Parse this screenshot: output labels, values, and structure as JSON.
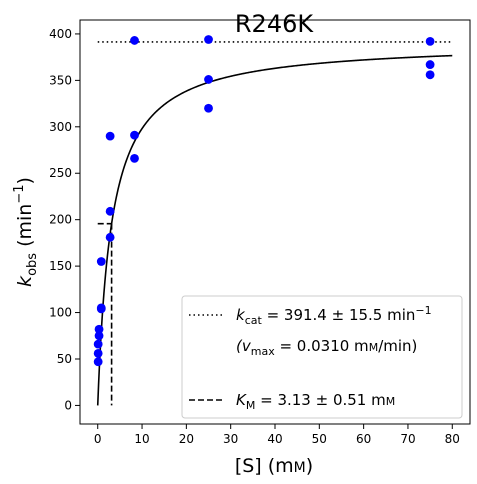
{
  "chart_data": {
    "type": "scatter",
    "title": "R246K",
    "xlabel": {
      "main": "[S] (m",
      "unit_sc": "M",
      "close": ")"
    },
    "ylabel": {
      "k": "k",
      "sub": "obs",
      "rest": " (min",
      "sup": "−1",
      "close": ")"
    },
    "xlim": [
      -4,
      84
    ],
    "ylim": [
      -20,
      415
    ],
    "x_ticks": [
      0,
      10,
      20,
      30,
      40,
      50,
      60,
      70,
      80
    ],
    "y_ticks": [
      0,
      50,
      100,
      150,
      200,
      250,
      300,
      350,
      400
    ],
    "grid": false,
    "legend_position": "bottom-right",
    "colors": {
      "points": "#0000ff",
      "fit": "#000000",
      "background": "#ffffff"
    },
    "series": [
      {
        "kind": "points",
        "x": [
          0.1,
          0.1,
          0.1,
          0.3,
          0.3,
          0.8,
          0.8,
          0.8,
          2.8,
          2.8,
          2.8,
          8.3,
          8.3,
          8.3,
          25,
          25,
          25,
          75,
          75,
          75
        ],
        "y": [
          47,
          56,
          66,
          75,
          82,
          104,
          105,
          155,
          181,
          209,
          290,
          291,
          266,
          393,
          351,
          320,
          394,
          367,
          356,
          392
        ]
      }
    ],
    "fit": {
      "model": "michaelis-menten",
      "kcat": 391.4,
      "km": 3.13,
      "x_range": [
        0,
        80
      ]
    },
    "reference_lines": {
      "kcat_line": {
        "y": 391.4,
        "x_range": [
          0,
          80
        ],
        "style": "dotted"
      },
      "km_line": {
        "x": 3.13,
        "y": 195.7,
        "x_start": 0,
        "style": "dashed"
      }
    },
    "legend": [
      {
        "style": "dotted",
        "prefix": "k",
        "sub": "cat",
        "text": " = 391.4 ± 15.5 min",
        "sup": "−1"
      },
      {
        "style": "none",
        "prefix": "(v",
        "sub": "max",
        "text": " = 0.0310 m",
        "unit_sc": "M",
        "close": "/min)"
      },
      {
        "style": "dashed",
        "prefix": "K",
        "sub": "M",
        "text": " = 3.13 ± 0.51 m",
        "unit_sc": "M"
      }
    ]
  }
}
